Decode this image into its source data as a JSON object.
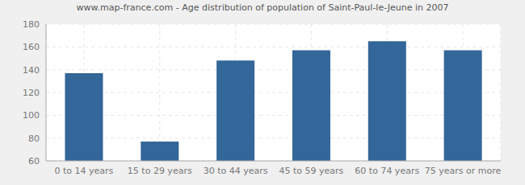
{
  "chart_data": {
    "type": "bar",
    "title": "www.map-france.com - Age distribution of population of Saint-Paul-le-Jeune in 2007",
    "categories": [
      "0 to 14 years",
      "15 to 29 years",
      "30 to 44 years",
      "45 to 59 years",
      "60 to 74 years",
      "75 years or more"
    ],
    "values": [
      137,
      77,
      148,
      157,
      165,
      157
    ],
    "color": "#336699",
    "ylim": [
      60,
      180
    ],
    "yticks": [
      60,
      80,
      100,
      120,
      140,
      160,
      180
    ],
    "grid": true
  }
}
